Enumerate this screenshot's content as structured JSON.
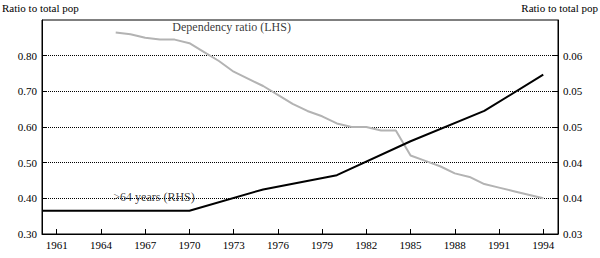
{
  "chart_data": {
    "type": "line",
    "ylabel": "Ratio to total pop",
    "y2label": "Ratio to total pop",
    "xlim": [
      1960,
      1995
    ],
    "xticks": [
      1961,
      1964,
      1967,
      1970,
      1973,
      1976,
      1979,
      1982,
      1985,
      1988,
      1991,
      1994
    ],
    "ylim": [
      0.3,
      0.9
    ],
    "yticks": [
      {
        "value": 0.3,
        "label": "0.30"
      },
      {
        "value": 0.4,
        "label": "0.40"
      },
      {
        "value": 0.5,
        "label": "0.50"
      },
      {
        "value": 0.6,
        "label": "0.60"
      },
      {
        "value": 0.7,
        "label": "0.70"
      },
      {
        "value": 0.8,
        "label": "0.80"
      }
    ],
    "y2lim": [
      0.03,
      0.066
    ],
    "y2ticks": [
      {
        "value": 0.03,
        "label": "0.03"
      },
      {
        "value": 0.036,
        "label": "0.04"
      },
      {
        "value": 0.042,
        "label": "0.04"
      },
      {
        "value": 0.048,
        "label": "0.05"
      },
      {
        "value": 0.054,
        "label": "0.05"
      },
      {
        "value": 0.06,
        "label": "0.06"
      }
    ],
    "grid": true,
    "series": [
      {
        "name": "Dependency ratio (LHS)",
        "color": "#b3b3b3",
        "x": [
          1965,
          1966,
          1967,
          1968,
          1969,
          1970,
          1971,
          1972,
          1973,
          1974,
          1975,
          1976,
          1977,
          1978,
          1979,
          1980,
          1981,
          1982,
          1983,
          1984,
          1985,
          1986,
          1987,
          1988,
          1989,
          1990,
          1991,
          1992,
          1993,
          1994
        ],
        "values": [
          0.865,
          0.86,
          0.85,
          0.845,
          0.845,
          0.835,
          0.81,
          0.785,
          0.755,
          0.735,
          0.715,
          0.69,
          0.665,
          0.645,
          0.63,
          0.61,
          0.6,
          0.6,
          0.59,
          0.59,
          0.52,
          0.505,
          0.49,
          0.47,
          0.46,
          0.44,
          0.43,
          0.42,
          0.41,
          0.4
        ]
      },
      {
        "name": ">64 years (RHS)",
        "color": "#000000",
        "axis": "y2",
        "x": [
          1960,
          1970,
          1975,
          1980,
          1985,
          1990,
          1994
        ],
        "values": [
          0.0339,
          0.0339,
          0.0375,
          0.0399,
          0.0456,
          0.0507,
          0.0568
        ]
      }
    ],
    "annotations": [
      {
        "text": "Dependency ratio (LHS)",
        "x": 1968.5,
        "y": 0.88
      },
      {
        "text": ">64 years (RHS)",
        "x": 1964.5,
        "y": 0.405
      }
    ]
  }
}
